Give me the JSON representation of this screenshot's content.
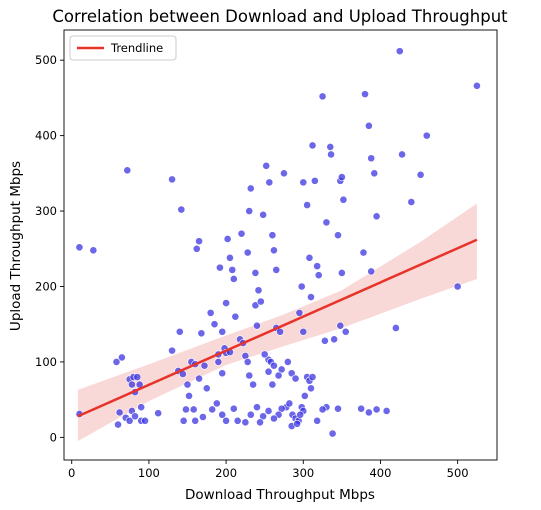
{
  "chart_data": {
    "type": "scatter",
    "title": "Correlation between Download and Upload Throughput",
    "xlabel": "Download Throughput Mbps",
    "ylabel": "Upload Throughput Mbps",
    "xlim": [
      -10,
      551
    ],
    "ylim": [
      -30,
      540
    ],
    "xticks": [
      0,
      100,
      200,
      300,
      400,
      500
    ],
    "yticks": [
      0,
      100,
      200,
      300,
      400,
      500
    ],
    "grid": false,
    "legend": {
      "position": "top-left",
      "entries": [
        "Trendline"
      ]
    },
    "colors": {
      "points": "#3b33e0",
      "points_edge": "#ffffff",
      "trendline": "#e8332a",
      "confidence_band": "#f4b9b7"
    },
    "trendline": {
      "x": [
        8,
        525
      ],
      "y": [
        28,
        262
      ]
    },
    "confidence_band": {
      "x": [
        8,
        100,
        200,
        275,
        350,
        450,
        525
      ],
      "upper": [
        63,
        97,
        135,
        163,
        195,
        258,
        310
      ],
      "lower": [
        -5,
        48,
        96,
        121,
        145,
        183,
        210
      ]
    },
    "points": [
      {
        "x": 10,
        "y": 252
      },
      {
        "x": 28,
        "y": 248
      },
      {
        "x": 10,
        "y": 31
      },
      {
        "x": 72,
        "y": 354
      },
      {
        "x": 65,
        "y": 106
      },
      {
        "x": 58,
        "y": 100
      },
      {
        "x": 75,
        "y": 77
      },
      {
        "x": 80,
        "y": 80
      },
      {
        "x": 85,
        "y": 80
      },
      {
        "x": 88,
        "y": 70
      },
      {
        "x": 78,
        "y": 70
      },
      {
        "x": 82,
        "y": 60
      },
      {
        "x": 90,
        "y": 40
      },
      {
        "x": 78,
        "y": 35
      },
      {
        "x": 70,
        "y": 26
      },
      {
        "x": 75,
        "y": 22
      },
      {
        "x": 62,
        "y": 33
      },
      {
        "x": 60,
        "y": 17
      },
      {
        "x": 82,
        "y": 28
      },
      {
        "x": 90,
        "y": 22
      },
      {
        "x": 95,
        "y": 22
      },
      {
        "x": 112,
        "y": 32
      },
      {
        "x": 130,
        "y": 342
      },
      {
        "x": 142,
        "y": 302
      },
      {
        "x": 130,
        "y": 115
      },
      {
        "x": 138,
        "y": 88
      },
      {
        "x": 144,
        "y": 84
      },
      {
        "x": 150,
        "y": 70
      },
      {
        "x": 140,
        "y": 140
      },
      {
        "x": 155,
        "y": 100
      },
      {
        "x": 160,
        "y": 97
      },
      {
        "x": 165,
        "y": 78
      },
      {
        "x": 152,
        "y": 55
      },
      {
        "x": 158,
        "y": 37
      },
      {
        "x": 148,
        "y": 37
      },
      {
        "x": 160,
        "y": 22
      },
      {
        "x": 170,
        "y": 27
      },
      {
        "x": 145,
        "y": 22
      },
      {
        "x": 165,
        "y": 260
      },
      {
        "x": 162,
        "y": 250
      },
      {
        "x": 168,
        "y": 138
      },
      {
        "x": 175,
        "y": 65
      },
      {
        "x": 172,
        "y": 95
      },
      {
        "x": 180,
        "y": 165
      },
      {
        "x": 185,
        "y": 150
      },
      {
        "x": 190,
        "y": 110
      },
      {
        "x": 195,
        "y": 140
      },
      {
        "x": 192,
        "y": 225
      },
      {
        "x": 198,
        "y": 118
      },
      {
        "x": 200,
        "y": 178
      },
      {
        "x": 202,
        "y": 263
      },
      {
        "x": 205,
        "y": 238
      },
      {
        "x": 208,
        "y": 222
      },
      {
        "x": 210,
        "y": 210
      },
      {
        "x": 212,
        "y": 160
      },
      {
        "x": 195,
        "y": 85
      },
      {
        "x": 200,
        "y": 112
      },
      {
        "x": 205,
        "y": 113
      },
      {
        "x": 188,
        "y": 45
      },
      {
        "x": 182,
        "y": 37
      },
      {
        "x": 195,
        "y": 30
      },
      {
        "x": 200,
        "y": 22
      },
      {
        "x": 210,
        "y": 38
      },
      {
        "x": 215,
        "y": 22
      },
      {
        "x": 218,
        "y": 130
      },
      {
        "x": 222,
        "y": 125
      },
      {
        "x": 225,
        "y": 108
      },
      {
        "x": 228,
        "y": 100
      },
      {
        "x": 230,
        "y": 82
      },
      {
        "x": 235,
        "y": 70
      },
      {
        "x": 238,
        "y": 175
      },
      {
        "x": 240,
        "y": 148
      },
      {
        "x": 242,
        "y": 195
      },
      {
        "x": 245,
        "y": 180
      },
      {
        "x": 232,
        "y": 330
      },
      {
        "x": 228,
        "y": 245
      },
      {
        "x": 238,
        "y": 218
      },
      {
        "x": 240,
        "y": 40
      },
      {
        "x": 232,
        "y": 30
      },
      {
        "x": 225,
        "y": 20
      },
      {
        "x": 248,
        "y": 295
      },
      {
        "x": 252,
        "y": 360
      },
      {
        "x": 256,
        "y": 338
      },
      {
        "x": 260,
        "y": 268
      },
      {
        "x": 262,
        "y": 248
      },
      {
        "x": 265,
        "y": 222
      },
      {
        "x": 255,
        "y": 103
      },
      {
        "x": 258,
        "y": 100
      },
      {
        "x": 262,
        "y": 95
      },
      {
        "x": 255,
        "y": 87
      },
      {
        "x": 260,
        "y": 70
      },
      {
        "x": 265,
        "y": 145
      },
      {
        "x": 270,
        "y": 140
      },
      {
        "x": 275,
        "y": 350
      },
      {
        "x": 272,
        "y": 90
      },
      {
        "x": 268,
        "y": 82
      },
      {
        "x": 280,
        "y": 100
      },
      {
        "x": 285,
        "y": 85
      },
      {
        "x": 290,
        "y": 78
      },
      {
        "x": 295,
        "y": 165
      },
      {
        "x": 298,
        "y": 200
      },
      {
        "x": 300,
        "y": 338
      },
      {
        "x": 305,
        "y": 308
      },
      {
        "x": 308,
        "y": 238
      },
      {
        "x": 310,
        "y": 186
      },
      {
        "x": 312,
        "y": 387
      },
      {
        "x": 315,
        "y": 340
      },
      {
        "x": 318,
        "y": 227
      },
      {
        "x": 320,
        "y": 215
      },
      {
        "x": 305,
        "y": 80
      },
      {
        "x": 308,
        "y": 75
      },
      {
        "x": 310,
        "y": 65
      },
      {
        "x": 312,
        "y": 80
      },
      {
        "x": 302,
        "y": 55
      },
      {
        "x": 325,
        "y": 452
      },
      {
        "x": 330,
        "y": 285
      },
      {
        "x": 335,
        "y": 385
      },
      {
        "x": 336,
        "y": 375
      },
      {
        "x": 328,
        "y": 128
      },
      {
        "x": 340,
        "y": 130
      },
      {
        "x": 345,
        "y": 268
      },
      {
        "x": 348,
        "y": 340
      },
      {
        "x": 350,
        "y": 345
      },
      {
        "x": 352,
        "y": 315
      },
      {
        "x": 350,
        "y": 218
      },
      {
        "x": 348,
        "y": 148
      },
      {
        "x": 355,
        "y": 140
      },
      {
        "x": 345,
        "y": 38
      },
      {
        "x": 338,
        "y": 5
      },
      {
        "x": 330,
        "y": 40
      },
      {
        "x": 325,
        "y": 37
      },
      {
        "x": 380,
        "y": 455
      },
      {
        "x": 385,
        "y": 413
      },
      {
        "x": 388,
        "y": 370
      },
      {
        "x": 392,
        "y": 350
      },
      {
        "x": 395,
        "y": 293
      },
      {
        "x": 378,
        "y": 245
      },
      {
        "x": 388,
        "y": 220
      },
      {
        "x": 375,
        "y": 38
      },
      {
        "x": 385,
        "y": 33
      },
      {
        "x": 395,
        "y": 37
      },
      {
        "x": 408,
        "y": 35
      },
      {
        "x": 420,
        "y": 145
      },
      {
        "x": 425,
        "y": 512
      },
      {
        "x": 428,
        "y": 375
      },
      {
        "x": 440,
        "y": 312
      },
      {
        "x": 452,
        "y": 348
      },
      {
        "x": 460,
        "y": 400
      },
      {
        "x": 500,
        "y": 200
      },
      {
        "x": 525,
        "y": 466
      },
      {
        "x": 278,
        "y": 40
      },
      {
        "x": 282,
        "y": 45
      },
      {
        "x": 286,
        "y": 30
      },
      {
        "x": 290,
        "y": 25
      },
      {
        "x": 294,
        "y": 22
      },
      {
        "x": 298,
        "y": 40
      },
      {
        "x": 300,
        "y": 35
      },
      {
        "x": 272,
        "y": 38
      },
      {
        "x": 268,
        "y": 30
      },
      {
        "x": 262,
        "y": 25
      },
      {
        "x": 255,
        "y": 35
      },
      {
        "x": 248,
        "y": 28
      },
      {
        "x": 244,
        "y": 20
      },
      {
        "x": 285,
        "y": 15
      },
      {
        "x": 292,
        "y": 18
      },
      {
        "x": 296,
        "y": 30
      },
      {
        "x": 318,
        "y": 22
      },
      {
        "x": 250,
        "y": 110
      },
      {
        "x": 230,
        "y": 300
      },
      {
        "x": 300,
        "y": 140
      },
      {
        "x": 190,
        "y": 100
      },
      {
        "x": 220,
        "y": 270
      }
    ]
  }
}
